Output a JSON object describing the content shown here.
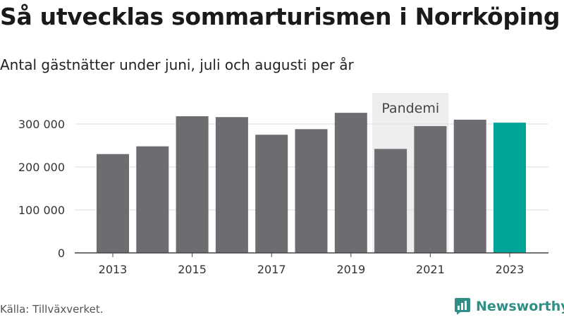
{
  "header": {
    "title": "Så utvecklas sommarturismen i Norrköping",
    "subtitle": "Antal gästnätter under juni, juli och augusti per år"
  },
  "footer": {
    "source": "Källa: Tillväxverket.",
    "brand": "Newsworthy"
  },
  "colors": {
    "bar": "#6d6c71",
    "highlight": "#00a499",
    "shade": "#eeeeee",
    "grid": "#dddddd",
    "brand": "#2f8f86"
  },
  "chart_data": {
    "type": "bar",
    "categories": [
      "2013",
      "2014",
      "2015",
      "2016",
      "2017",
      "2018",
      "2019",
      "2020",
      "2021",
      "2022",
      "2023"
    ],
    "values": [
      230000,
      248000,
      318000,
      316000,
      275000,
      288000,
      326000,
      242000,
      295000,
      310000,
      303000
    ],
    "highlight_category": "2023",
    "x_tick_labels": [
      "2013",
      "2015",
      "2017",
      "2019",
      "2021",
      "2023"
    ],
    "y_ticks": [
      0,
      100000,
      200000,
      300000
    ],
    "y_tick_labels": [
      "0",
      "100 000",
      "200 000",
      "300 000"
    ],
    "ylim": [
      0,
      360000
    ],
    "annotation": {
      "label": "Pandemi",
      "from": "2020",
      "to": "2021"
    },
    "grid": true
  }
}
